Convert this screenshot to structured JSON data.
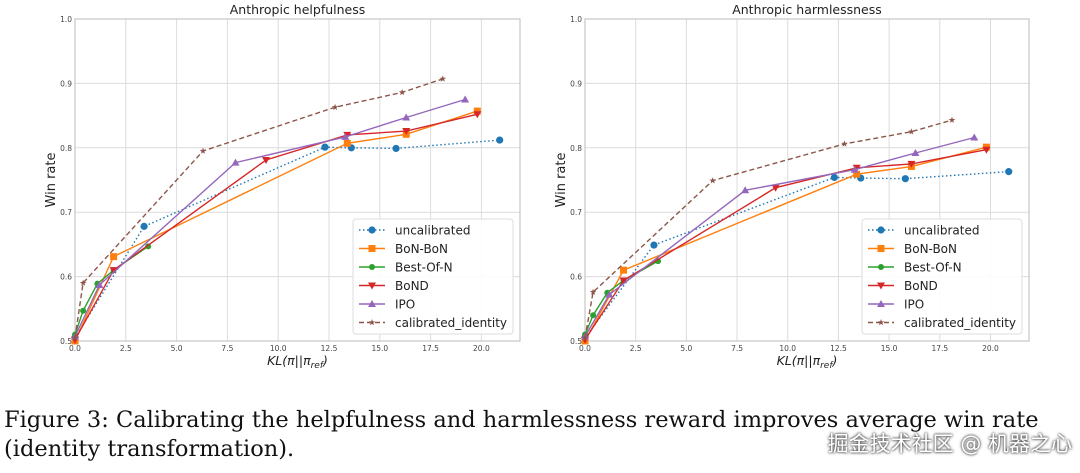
{
  "chart_data": [
    {
      "type": "line",
      "title": "Anthropic helpfulness",
      "xlabel": "KL(π||π_ref)",
      "ylabel": "Win rate",
      "xlim": [
        0,
        21.9
      ],
      "ylim": [
        0.5,
        1.0
      ],
      "xticks": [
        "0.0",
        "2.5",
        "5.0",
        "7.5",
        "10.0",
        "12.5",
        "15.0",
        "17.5",
        "20.0"
      ],
      "yticks": [
        "0.5",
        "0.6",
        "0.7",
        "0.8",
        "0.9",
        "1.0"
      ],
      "grid": true,
      "legend": "bottom-right",
      "series": [
        {
          "name": "uncalibrated",
          "x": [
            0,
            3.4,
            12.3,
            13.6,
            15.8,
            20.9
          ],
          "y": [
            0.505,
            0.678,
            0.801,
            0.8,
            0.799,
            0.812
          ]
        },
        {
          "name": "BoN-BoN",
          "x": [
            0,
            1.9,
            13.4,
            16.3,
            19.8
          ],
          "y": [
            0.5,
            0.631,
            0.807,
            0.821,
            0.857
          ]
        },
        {
          "name": "Best-Of-N",
          "x": [
            0,
            0.4,
            1.1,
            1.9,
            3.6
          ],
          "y": [
            0.51,
            0.547,
            0.589,
            0.61,
            0.647
          ]
        },
        {
          "name": "BoND",
          "x": [
            0,
            1.9,
            9.4,
            13.4,
            16.3,
            19.8
          ],
          "y": [
            0.502,
            0.61,
            0.781,
            0.82,
            0.826,
            0.852
          ]
        },
        {
          "name": "IPO",
          "x": [
            0,
            1.2,
            7.9,
            13.3,
            16.3,
            19.2
          ],
          "y": [
            0.507,
            0.587,
            0.777,
            0.817,
            0.847,
            0.875
          ]
        },
        {
          "name": "calibrated_identity",
          "x": [
            0,
            0.4,
            6.3,
            12.8,
            16.1,
            18.1
          ],
          "y": [
            0.505,
            0.59,
            0.795,
            0.863,
            0.886,
            0.907
          ]
        }
      ]
    },
    {
      "type": "line",
      "title": "Anthropic harmlessness",
      "xlabel": "KL(π||π_ref)",
      "ylabel": "Win rate",
      "xlim": [
        0,
        21.9
      ],
      "ylim": [
        0.5,
        1.0
      ],
      "xticks": [
        "0.0",
        "2.5",
        "5.0",
        "7.5",
        "10.0",
        "12.5",
        "15.0",
        "17.5",
        "20.0"
      ],
      "yticks": [
        "0.5",
        "0.6",
        "0.7",
        "0.8",
        "0.9",
        "1.0"
      ],
      "grid": true,
      "legend": "bottom-right",
      "series": [
        {
          "name": "uncalibrated",
          "x": [
            0,
            3.4,
            12.3,
            13.6,
            15.8,
            20.9
          ],
          "y": [
            0.505,
            0.649,
            0.754,
            0.753,
            0.752,
            0.763
          ]
        },
        {
          "name": "BoN-BoN",
          "x": [
            0,
            1.9,
            13.4,
            16.1,
            19.8
          ],
          "y": [
            0.5,
            0.61,
            0.759,
            0.771,
            0.801
          ]
        },
        {
          "name": "Best-Of-N",
          "x": [
            0,
            0.4,
            1.1,
            1.9,
            3.6
          ],
          "y": [
            0.51,
            0.54,
            0.575,
            0.594,
            0.624
          ]
        },
        {
          "name": "BoND",
          "x": [
            0,
            1.9,
            9.4,
            13.4,
            16.1,
            19.8
          ],
          "y": [
            0.502,
            0.594,
            0.738,
            0.769,
            0.775,
            0.797
          ]
        },
        {
          "name": "IPO",
          "x": [
            0,
            1.2,
            7.9,
            13.3,
            16.3,
            19.2
          ],
          "y": [
            0.507,
            0.572,
            0.734,
            0.766,
            0.792,
            0.816
          ]
        },
        {
          "name": "calibrated_identity",
          "x": [
            0,
            0.4,
            6.3,
            12.8,
            16.1,
            18.1
          ],
          "y": [
            0.505,
            0.576,
            0.749,
            0.806,
            0.825,
            0.843
          ]
        }
      ]
    }
  ],
  "styles": {
    "uncalibrated": {
      "color": "#1f77b4",
      "dash": "1.5,2.5",
      "marker": "circle"
    },
    "BoN-BoN": {
      "color": "#ff7f0e",
      "dash": "",
      "marker": "square"
    },
    "Best-Of-N": {
      "color": "#2ca02c",
      "dash": "",
      "marker": "circle-small"
    },
    "BoND": {
      "color": "#d62728",
      "dash": "",
      "marker": "triangle-down"
    },
    "IPO": {
      "color": "#9467bd",
      "dash": "",
      "marker": "triangle-up"
    },
    "calibrated_identity": {
      "color": "#8c564b",
      "dash": "5,3",
      "marker": "star"
    }
  },
  "caption": "Figure 3: Calibrating the helpfulness and harmlessness reward improves average win rate (identity transformation).",
  "watermark": "掘金技术社区 @ 机器之心"
}
